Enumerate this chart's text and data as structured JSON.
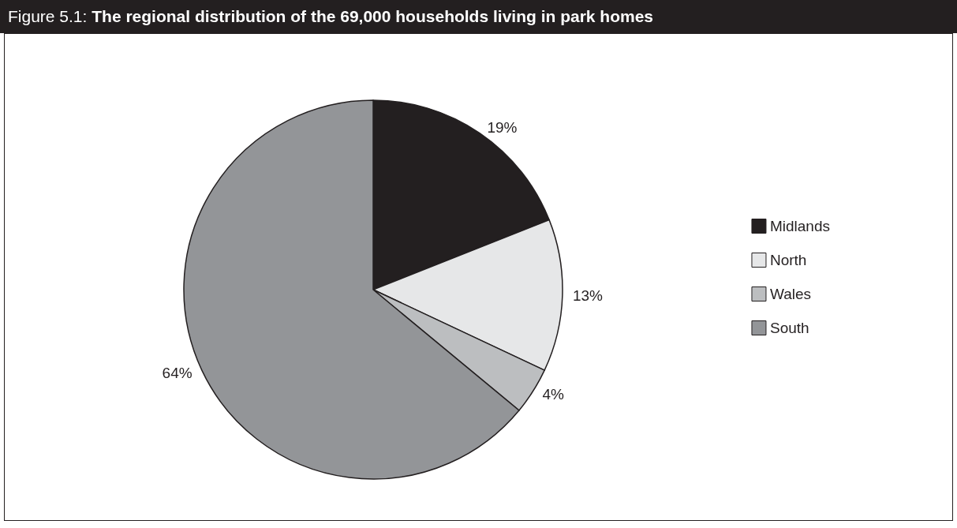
{
  "chart_data": {
    "type": "pie",
    "title": "Figure 5.1: The regional distribution of the 69,000 households living in park homes",
    "categories": [
      "Midlands",
      "North",
      "Wales",
      "South"
    ],
    "values": [
      19,
      13,
      4,
      64
    ],
    "colors": [
      "#231f20",
      "#e6e7e8",
      "#bcbec0",
      "#939598"
    ],
    "value_labels": [
      "19%",
      "13%",
      "4%",
      "64%"
    ],
    "legend": "right"
  }
}
